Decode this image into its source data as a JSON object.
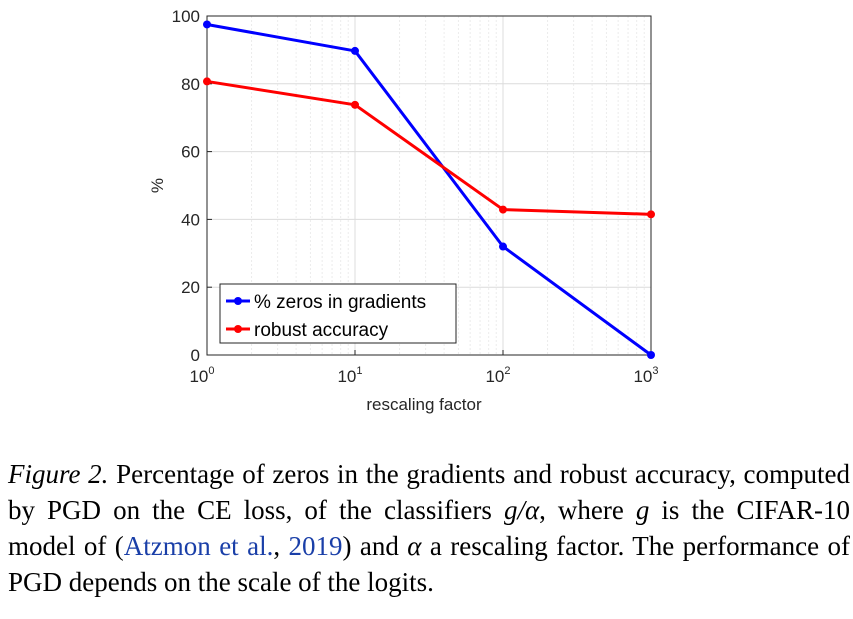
{
  "chart_data": {
    "type": "line",
    "xscale": "log",
    "xlabel": "rescaling factor",
    "ylabel": "%",
    "xlim": [
      1,
      1000
    ],
    "ylim": [
      0,
      100
    ],
    "x": [
      1,
      10,
      100,
      1000
    ],
    "x_ticks": [
      {
        "value": 1,
        "base": "10",
        "exp": "0"
      },
      {
        "value": 10,
        "base": "10",
        "exp": "1"
      },
      {
        "value": 100,
        "base": "10",
        "exp": "2"
      },
      {
        "value": 1000,
        "base": "10",
        "exp": "3"
      }
    ],
    "y_ticks": [
      0,
      20,
      40,
      60,
      80,
      100
    ],
    "grid": true,
    "legend_position": "bottom-left",
    "series": [
      {
        "name": "% zeros in gradients",
        "color": "#0000ff",
        "values": [
          97.5,
          89.7,
          32,
          0
        ]
      },
      {
        "name": "robust accuracy",
        "color": "#ff0000",
        "values": [
          80.7,
          73.8,
          42.9,
          41.5
        ]
      }
    ]
  },
  "caption": {
    "figure_label": "Figure 2.",
    "text_before_math1": " Percentage of zeros in the gradients and robust accuracy, computed by PGD on the CE loss, of the classifiers ",
    "math1": "g/α",
    "text_before_math2": ", where ",
    "math2": "g",
    "text_before_cite": " is the CIFAR-10 model of (",
    "cite_author": "Atzmon et al.",
    "cite_sep": ", ",
    "cite_year": "2019",
    "text_before_math3": ") and ",
    "math3": "α",
    "text_end": " a rescaling factor. The performance of PGD depends on the scale of the logits."
  }
}
